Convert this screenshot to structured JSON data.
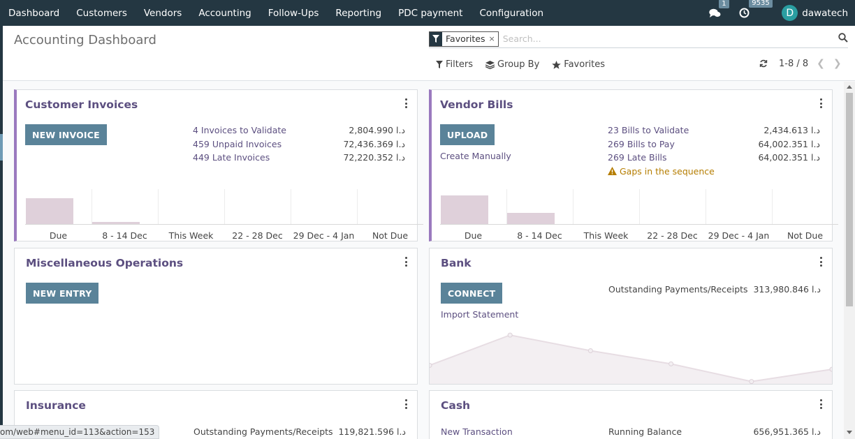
{
  "nav": {
    "menu": [
      "Dashboard",
      "Customers",
      "Vendors",
      "Accounting",
      "Follow-Ups",
      "Reporting",
      "PDC payment",
      "Configuration"
    ],
    "messages_icon": "chat-icon",
    "messages_count": "1",
    "activities_icon": "clock-icon",
    "activities_count": "9535",
    "user_initial": "D",
    "user_name": "dawatech"
  },
  "control_panel": {
    "title": "Accounting Dashboard",
    "facet_label": "Favorites",
    "facet_remove": "×",
    "search_placeholder": "Search...",
    "filters_label": "Filters",
    "groupby_label": "Group By",
    "favorites_label": "Favorites",
    "pager": "1-8 / 8"
  },
  "colors": {
    "navbar": "#243742",
    "accent": "#9a79be",
    "button": "#5a8399",
    "title": "#5c4f80",
    "bar": "#dfd0da"
  },
  "cards": {
    "customer_invoices": {
      "title": "Customer Invoices",
      "button": "NEW INVOICE",
      "stats": [
        {
          "label": "4 Invoices to Validate",
          "value": "2,804.990 د.ا"
        },
        {
          "label": "459 Unpaid Invoices",
          "value": "72,436.369 د.ا"
        },
        {
          "label": "449 Late Invoices",
          "value": "72,220.352 د.ا"
        }
      ],
      "chart_data": {
        "type": "bar",
        "categories": [
          "Due",
          "8 - 14 Dec",
          "This Week",
          "22 - 28 Dec",
          "29 Dec - 4 Jan",
          "Not Due"
        ],
        "values": [
          0.74,
          0.06,
          0,
          0,
          0,
          0
        ]
      }
    },
    "vendor_bills": {
      "title": "Vendor Bills",
      "button": "UPLOAD",
      "link": "Create Manually",
      "stats": [
        {
          "label": "23 Bills to Validate",
          "value": "2,434.613 د.ا"
        },
        {
          "label": "269 Bills to Pay",
          "value": "64,002.351 د.ا"
        },
        {
          "label": "269 Late Bills",
          "value": "64,002.351 د.ا"
        }
      ],
      "warning": "Gaps in the sequence",
      "chart_data": {
        "type": "bar",
        "categories": [
          "Due",
          "8 - 14 Dec",
          "This Week",
          "22 - 28 Dec",
          "29 Dec - 4 Jan",
          "Not Due"
        ],
        "values": [
          0.82,
          0.33,
          0,
          0,
          0,
          0
        ]
      }
    },
    "misc": {
      "title": "Miscellaneous Operations",
      "button": "NEW ENTRY"
    },
    "bank": {
      "title": "Bank",
      "button": "CONNECT",
      "link": "Import Statement",
      "stat_label": "Outstanding Payments/Receipts",
      "stat_value": "313,980.846 د.ا",
      "chart_data": {
        "type": "area",
        "values": [
          0.35,
          0.97,
          0.65,
          0.38,
          0.02,
          0.27
        ]
      }
    },
    "insurance": {
      "title": "Insurance",
      "stat_label": "Outstanding Payments/Receipts",
      "stat_value": "119,821.596 د.ا"
    },
    "cash": {
      "title": "Cash",
      "link": "New Transaction",
      "stat_label": "Running Balance",
      "stat_value": "656,951.365 د.ا"
    }
  },
  "status_url": "om/web#menu_id=113&action=153"
}
